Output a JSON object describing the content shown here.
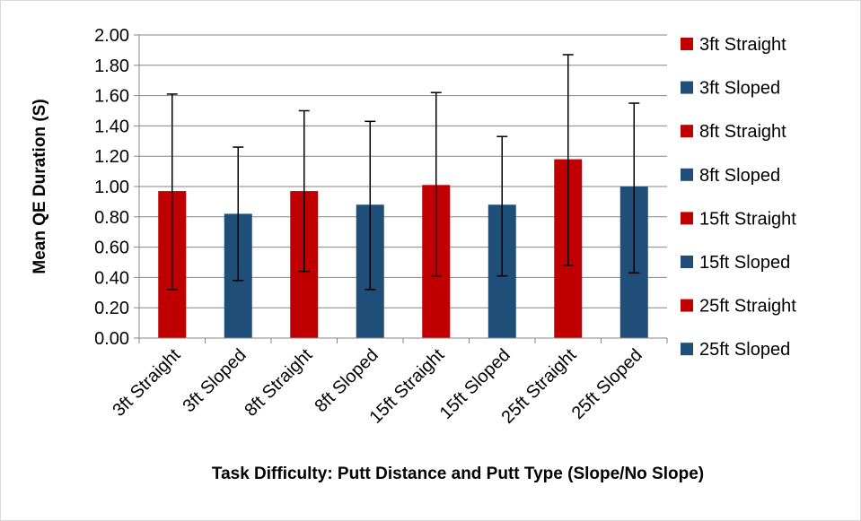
{
  "chart_data": {
    "type": "bar",
    "title": "",
    "xlabel": "Task Difficulty: Putt Distance and Putt Type (Slope/No Slope)",
    "ylabel": "Mean QE Duration (S)",
    "ylim": [
      0,
      2.0
    ],
    "y_ticks": [
      "0.00",
      "0.20",
      "0.40",
      "0.60",
      "0.80",
      "1.00",
      "1.20",
      "1.40",
      "1.60",
      "1.80",
      "2.00"
    ],
    "y_tick_values": [
      0,
      0.2,
      0.4,
      0.6,
      0.8,
      1.0,
      1.2,
      1.4,
      1.6,
      1.8,
      2.0
    ],
    "grid": true,
    "legend_position": "right",
    "categories": [
      "3ft Straight",
      "3ft Sloped",
      "8ft Straight",
      "8ft Sloped",
      "15ft Straight",
      "15ft Sloped",
      "25ft Straight",
      "25ft Sloped"
    ],
    "series": [
      {
        "name": "3ft Straight",
        "values": [
          0.97,
          null,
          null,
          null,
          null,
          null,
          null,
          null
        ],
        "error_low": [
          0.32,
          null,
          null,
          null,
          null,
          null,
          null,
          null
        ],
        "error_high": [
          1.61,
          null,
          null,
          null,
          null,
          null,
          null,
          null
        ],
        "color": "#c00000"
      },
      {
        "name": "3ft Sloped",
        "values": [
          null,
          0.82,
          null,
          null,
          null,
          null,
          null,
          null
        ],
        "error_low": [
          null,
          0.38,
          null,
          null,
          null,
          null,
          null,
          null
        ],
        "error_high": [
          null,
          1.26,
          null,
          null,
          null,
          null,
          null,
          null
        ],
        "color": "#1f4e79"
      },
      {
        "name": "8ft Straight",
        "values": [
          null,
          null,
          0.97,
          null,
          null,
          null,
          null,
          null
        ],
        "error_low": [
          null,
          null,
          0.44,
          null,
          null,
          null,
          null,
          null
        ],
        "error_high": [
          null,
          null,
          1.5,
          null,
          null,
          null,
          null,
          null
        ],
        "color": "#c00000"
      },
      {
        "name": "8ft Sloped",
        "values": [
          null,
          null,
          null,
          0.88,
          null,
          null,
          null,
          null
        ],
        "error_low": [
          null,
          null,
          null,
          0.32,
          null,
          null,
          null,
          null
        ],
        "error_high": [
          null,
          null,
          null,
          1.43,
          null,
          null,
          null,
          null
        ],
        "color": "#1f4e79"
      },
      {
        "name": "15ft Straight",
        "values": [
          null,
          null,
          null,
          null,
          1.01,
          null,
          null,
          null
        ],
        "error_low": [
          null,
          null,
          null,
          null,
          0.41,
          null,
          null,
          null
        ],
        "error_high": [
          null,
          null,
          null,
          null,
          1.62,
          null,
          null,
          null
        ],
        "color": "#c00000"
      },
      {
        "name": "15ft Sloped",
        "values": [
          null,
          null,
          null,
          null,
          null,
          0.88,
          null,
          null
        ],
        "error_low": [
          null,
          null,
          null,
          null,
          null,
          0.41,
          null,
          null
        ],
        "error_high": [
          null,
          null,
          null,
          null,
          null,
          1.33,
          null,
          null
        ],
        "color": "#1f4e79"
      },
      {
        "name": "25ft Straight",
        "values": [
          null,
          null,
          null,
          null,
          null,
          null,
          1.18,
          null
        ],
        "error_low": [
          null,
          null,
          null,
          null,
          null,
          null,
          0.48,
          null
        ],
        "error_high": [
          null,
          null,
          null,
          null,
          null,
          null,
          1.87,
          null
        ],
        "color": "#c00000"
      },
      {
        "name": "25ft Sloped",
        "values": [
          null,
          null,
          null,
          null,
          null,
          null,
          null,
          1.0
        ],
        "error_low": [
          null,
          null,
          null,
          null,
          null,
          null,
          null,
          0.43
        ],
        "error_high": [
          null,
          null,
          null,
          null,
          null,
          null,
          null,
          1.55
        ],
        "color": "#1f4e79"
      }
    ]
  }
}
